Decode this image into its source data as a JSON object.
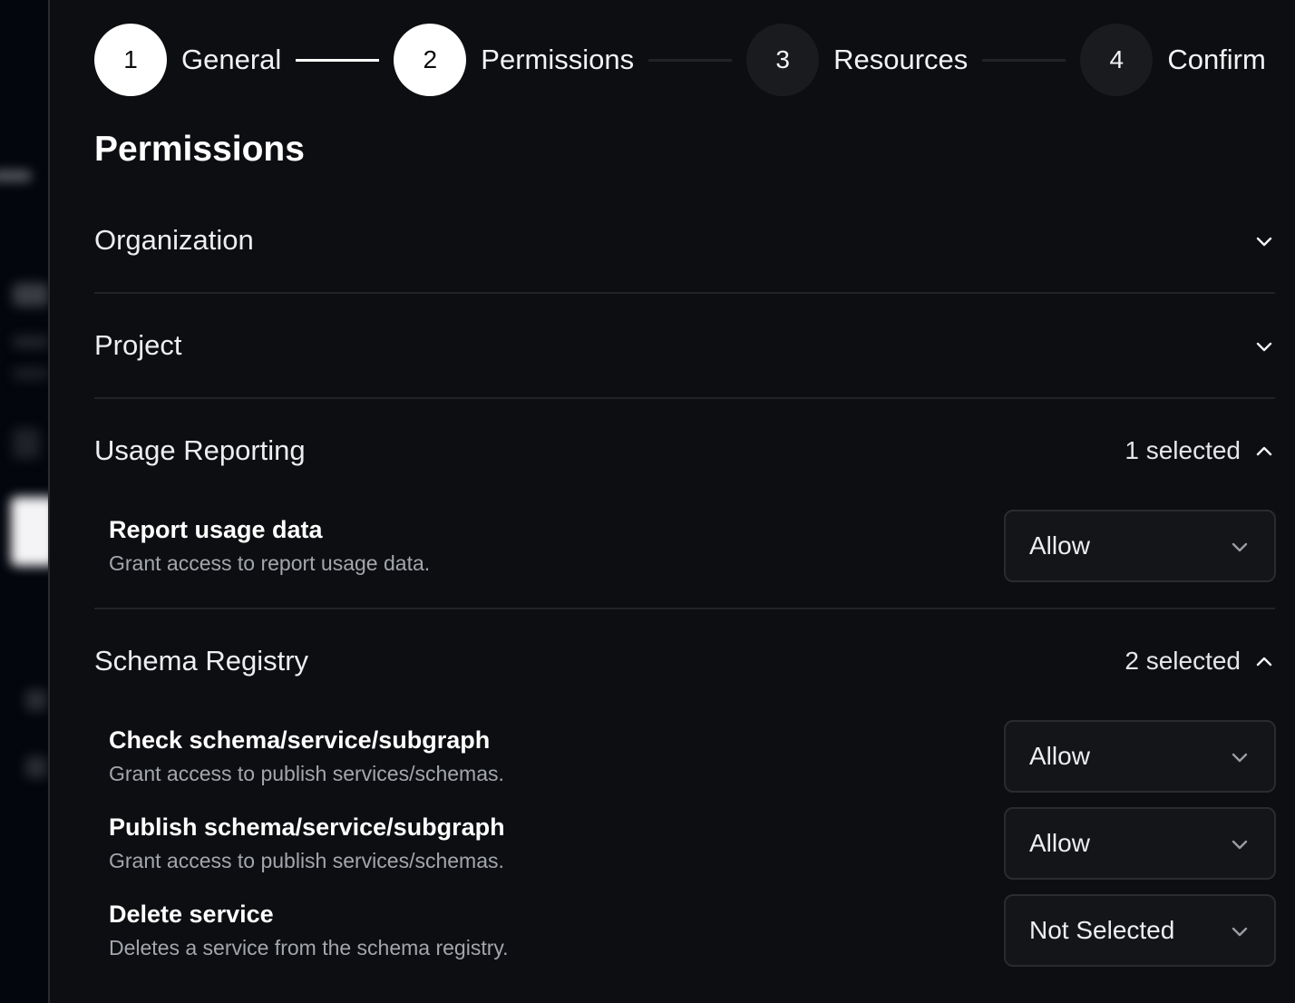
{
  "stepper": {
    "steps": [
      {
        "number": "1",
        "label": "General",
        "state": "complete"
      },
      {
        "number": "2",
        "label": "Permissions",
        "state": "current"
      },
      {
        "number": "3",
        "label": "Resources",
        "state": "upcoming"
      },
      {
        "number": "4",
        "label": "Confirm",
        "state": "upcoming"
      }
    ]
  },
  "page_title": "Permissions",
  "sections": [
    {
      "title": "Organization",
      "expanded": false,
      "icon": "chevron-down-icon"
    },
    {
      "title": "Project",
      "expanded": false,
      "icon": "chevron-down-icon"
    },
    {
      "title": "Usage Reporting",
      "expanded": true,
      "count": "1 selected",
      "icon": "chevron-up-icon",
      "items": [
        {
          "title": "Report usage data",
          "description": "Grant access to report usage data.",
          "value": "Allow"
        }
      ]
    },
    {
      "title": "Schema Registry",
      "expanded": true,
      "count": "2 selected",
      "icon": "chevron-up-icon",
      "items": [
        {
          "title": "Check schema/service/subgraph",
          "description": "Grant access to publish services/schemas.",
          "value": "Allow"
        },
        {
          "title": "Publish schema/service/subgraph",
          "description": "Grant access to publish services/schemas.",
          "value": "Allow"
        },
        {
          "title": "Delete service",
          "description": "Deletes a service from the schema registry.",
          "value": "Not Selected"
        }
      ]
    }
  ]
}
